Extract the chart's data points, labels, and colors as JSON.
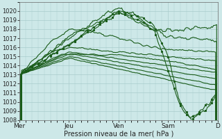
{
  "xlabel": "Pression niveau de la mer( hPa )",
  "background_color": "#cde8e8",
  "grid_color": "#a8cccc",
  "line_color": "#1a5c1a",
  "ylim": [
    1008,
    1021
  ],
  "yticks": [
    1008,
    1009,
    1010,
    1011,
    1012,
    1013,
    1014,
    1015,
    1016,
    1017,
    1018,
    1019,
    1020
  ],
  "xtick_labels": [
    "Mer",
    "Jeu",
    "Ven",
    "Sam",
    "D"
  ],
  "xtick_positions": [
    0,
    48,
    96,
    144,
    192
  ],
  "num_points": 193
}
